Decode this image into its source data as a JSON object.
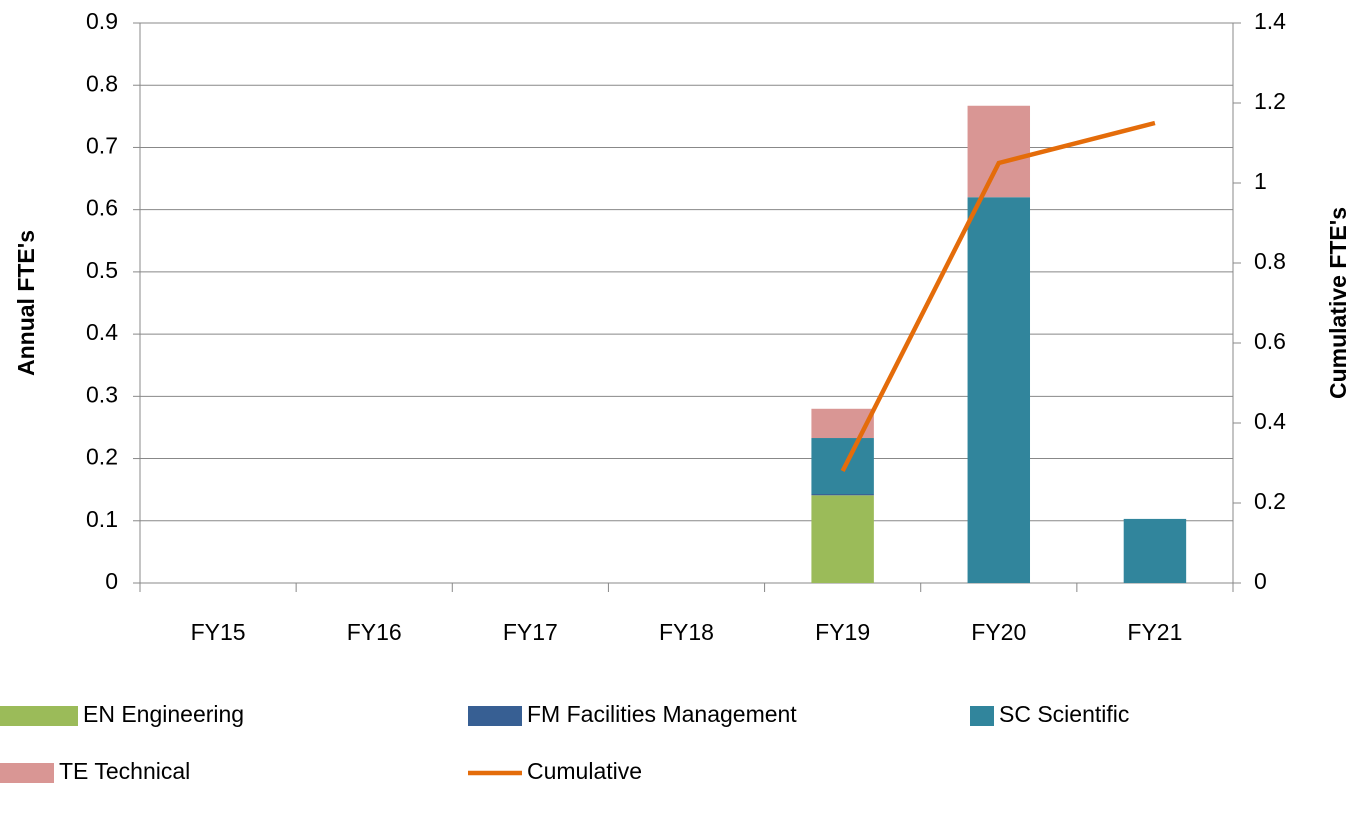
{
  "chart_data": {
    "type": "bar",
    "y_label": "Annual FTE's",
    "y2_label": "Cumulative FTE's",
    "categories": [
      "FY15",
      "FY16",
      "FY17",
      "FY18",
      "FY19",
      "FY20",
      "FY21"
    ],
    "stacked": true,
    "grid": true,
    "ylim": [
      0,
      0.9
    ],
    "yticks": [
      0,
      0.1,
      0.2,
      0.3,
      0.4,
      0.5,
      0.6,
      0.7,
      0.8,
      0.9
    ],
    "y2lim": [
      0,
      1.4
    ],
    "y2ticks": [
      0,
      0.2,
      0.4,
      0.6,
      0.8,
      1,
      1.2,
      1.4
    ],
    "legend": "bottom",
    "series": [
      {
        "name": "EN Engineering",
        "color": "#9bbb59",
        "type": "bar",
        "values": [
          0,
          0,
          0,
          0,
          0.141,
          0,
          0
        ]
      },
      {
        "name": "FM Facilities Management",
        "color": "#375f93",
        "type": "bar",
        "values": [
          0,
          0,
          0,
          0,
          0.002,
          0,
          0
        ]
      },
      {
        "name": "SC Scientific",
        "color": "#31859c",
        "type": "bar",
        "values": [
          0,
          0,
          0,
          0,
          0.09,
          0.62,
          0.103
        ]
      },
      {
        "name": "TE Technical",
        "color": "#d99694",
        "type": "bar",
        "values": [
          0,
          0,
          0,
          0,
          0.047,
          0.147,
          0
        ]
      },
      {
        "name": "Cumulative",
        "color": "#e46c0a",
        "type": "line",
        "axis": "y2",
        "values": [
          null,
          null,
          null,
          null,
          0.28,
          1.05,
          1.15
        ]
      }
    ]
  }
}
